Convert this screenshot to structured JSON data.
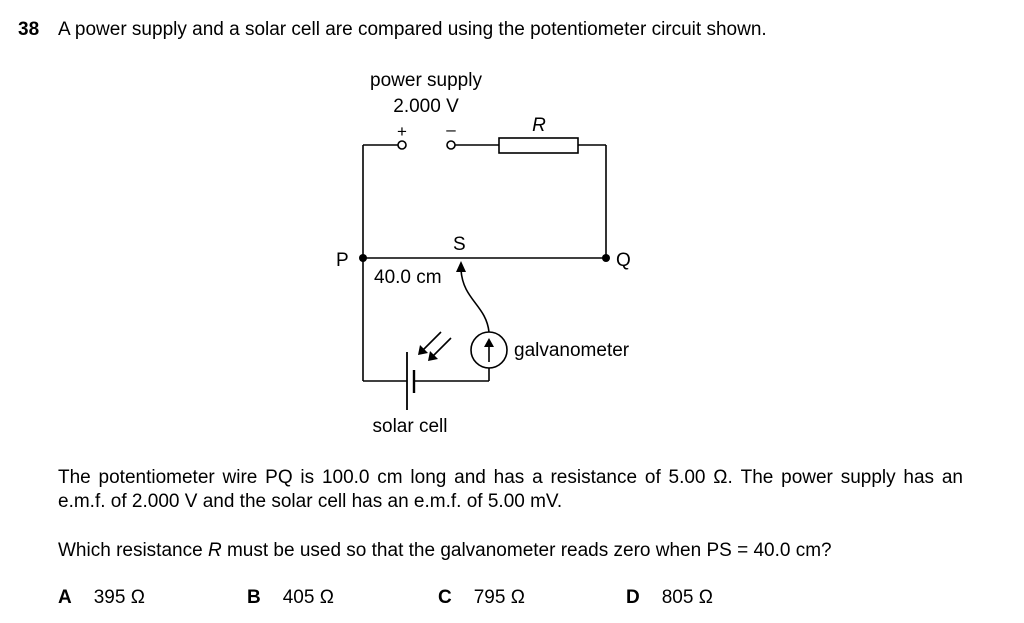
{
  "question": {
    "number": "38",
    "stem": "A power supply and a solar cell are compared using the potentiometer circuit shown."
  },
  "diagram": {
    "power_supply_label": "power supply",
    "power_supply_voltage": "2.000 V",
    "plus_sign": "+",
    "minus_sign": "–",
    "resistor_label": "R",
    "point_p": "P",
    "point_q": "Q",
    "point_s": "S",
    "length_label": "40.0 cm",
    "galvanometer_label": "galvanometer",
    "solar_cell_label": "solar cell"
  },
  "paragraph_1": "The potentiometer wire PQ is 100.0 cm long and has a resistance of 5.00 Ω. The power supply has an e.m.f. of 2.000 V and the solar cell has an e.m.f. of 5.00 mV.",
  "paragraph_2": "Which resistance R must be used so that the galvanometer reads zero when PS = 40.0 cm?",
  "options": [
    {
      "letter": "A",
      "value": "395 Ω"
    },
    {
      "letter": "B",
      "value": "405 Ω"
    },
    {
      "letter": "C",
      "value": "795 Ω"
    },
    {
      "letter": "D",
      "value": "805 Ω"
    }
  ]
}
